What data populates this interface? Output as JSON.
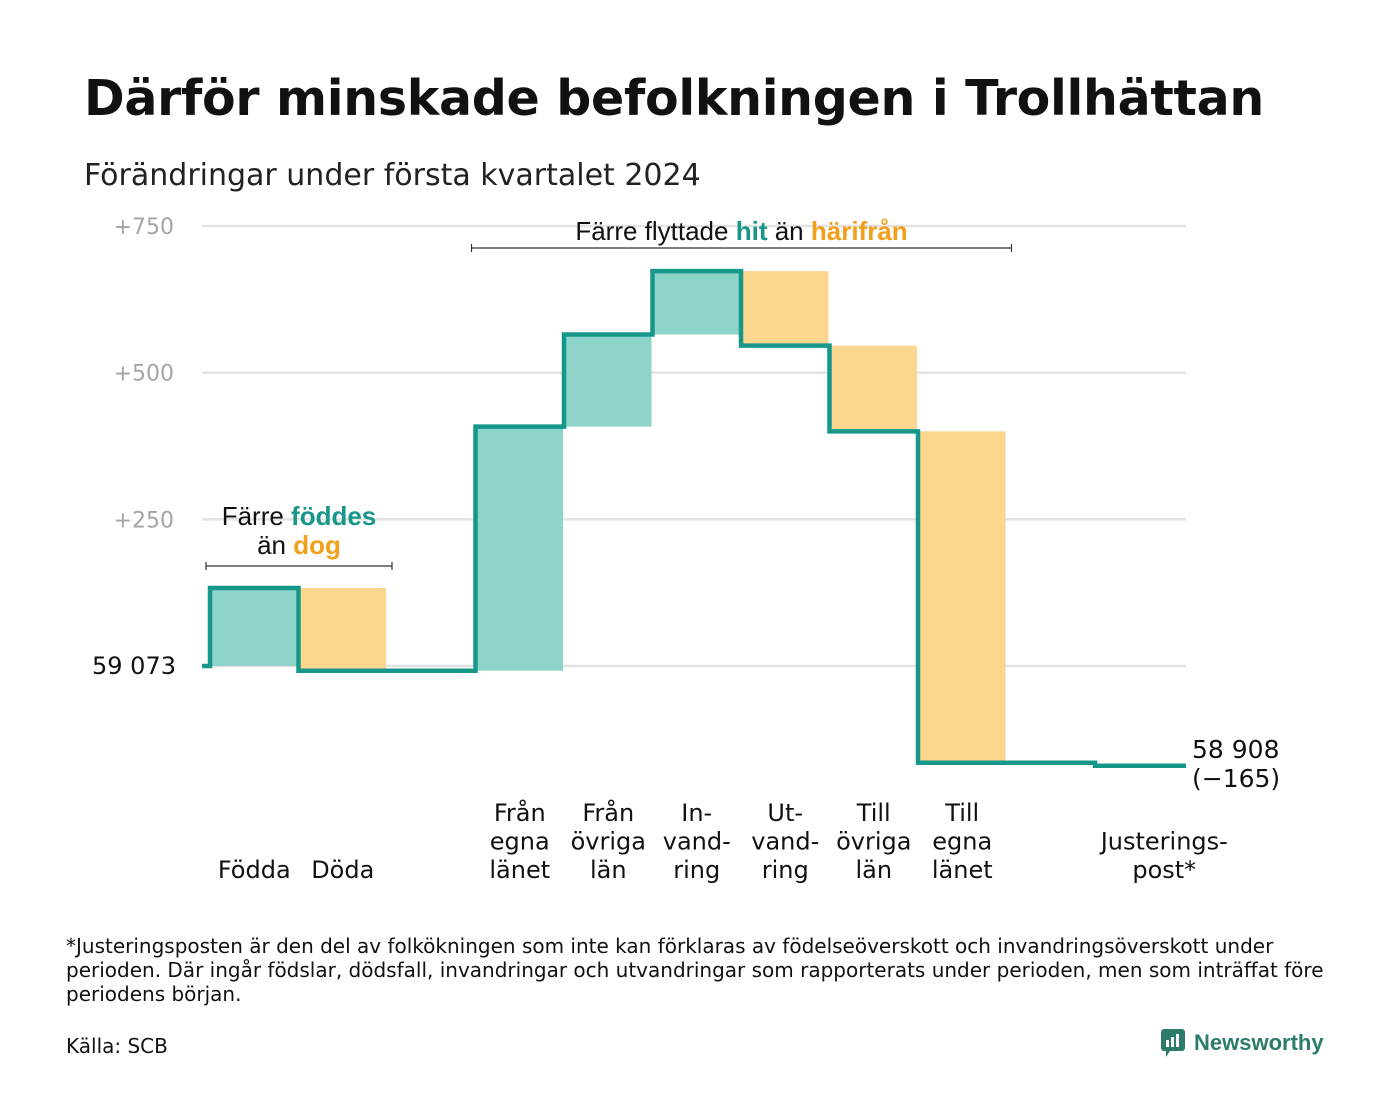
{
  "title": "Därför minskade befolkningen i Trollhättan",
  "subtitle": "Förändringar under första kvartalet 2024",
  "footnote": "*Justeringsposten är den del av folkökningen som inte kan förklaras av födelseöverskott och invandringsöverskott under perioden. Där ingår födslar, dödsfall, invandringar och utvandringar som rapporterats under perioden, men som inträffat före periodens början.",
  "source": "Källa: SCB",
  "brand": {
    "name": "Newsworthy",
    "icon": "newsworthy-logo-icon"
  },
  "colors": {
    "increase": "#8dd5cb",
    "decrease": "#fbd68e",
    "line": "#16978a",
    "accent_teal": "#16978a",
    "accent_orange": "#f29f1a",
    "grid": "#e3e3e3",
    "tick": "#a5a5a5"
  },
  "chart_data": {
    "type": "waterfall",
    "start_value": 59073,
    "start_label": "59  073",
    "end_value": 58908,
    "end_label_lines": [
      "58 908",
      "(−165)"
    ],
    "ylim": [
      -165,
      750
    ],
    "y_ticks": [
      {
        "value": 250,
        "label": "+250"
      },
      {
        "value": 500,
        "label": "+500"
      },
      {
        "value": 750,
        "label": "+750"
      }
    ],
    "steps": [
      {
        "label_lines": [
          "Födda"
        ],
        "change": 133,
        "kind": "increase"
      },
      {
        "label_lines": [
          "Döda"
        ],
        "change": -141,
        "kind": "decrease"
      },
      {
        "label_lines": [],
        "change": 0,
        "kind": "gap"
      },
      {
        "label_lines": [
          "Från",
          "egna",
          "länet"
        ],
        "change": 416,
        "kind": "increase"
      },
      {
        "label_lines": [
          "Från",
          "övriga",
          "län"
        ],
        "change": 157,
        "kind": "increase"
      },
      {
        "label_lines": [
          "In-",
          "vand-",
          "ring"
        ],
        "change": 108,
        "kind": "increase"
      },
      {
        "label_lines": [
          "Ut-",
          "vand-",
          "ring"
        ],
        "change": -127,
        "kind": "decrease"
      },
      {
        "label_lines": [
          "Till",
          "övriga",
          "län"
        ],
        "change": -146,
        "kind": "decrease"
      },
      {
        "label_lines": [
          "Till",
          "egna",
          "länet"
        ],
        "change": -565,
        "kind": "decrease"
      },
      {
        "label_lines": [],
        "change": 0,
        "kind": "gap"
      },
      {
        "label_lines": [
          "Justerings-",
          "post*"
        ],
        "change": -5,
        "kind": "line"
      }
    ],
    "annotations": [
      {
        "text_parts": [
          {
            "text": "Färre ",
            "color": "#111111",
            "bold": false
          },
          {
            "text": "föddes",
            "color": "#16978a",
            "bold": true
          }
        ],
        "text_parts_2": [
          {
            "text": "än ",
            "color": "#111111",
            "bold": false
          },
          {
            "text": "dog",
            "color": "#f29f1a",
            "bold": true
          }
        ],
        "from_step": 0,
        "to_step": 1
      },
      {
        "text_parts": [
          {
            "text": "Färre flyttade ",
            "color": "#111111",
            "bold": false
          },
          {
            "text": "hit",
            "color": "#16978a",
            "bold": true
          },
          {
            "text": " än ",
            "color": "#111111",
            "bold": false
          },
          {
            "text": "härifrån",
            "color": "#f29f1a",
            "bold": true
          }
        ],
        "from_step": 3,
        "to_step": 8
      }
    ]
  }
}
